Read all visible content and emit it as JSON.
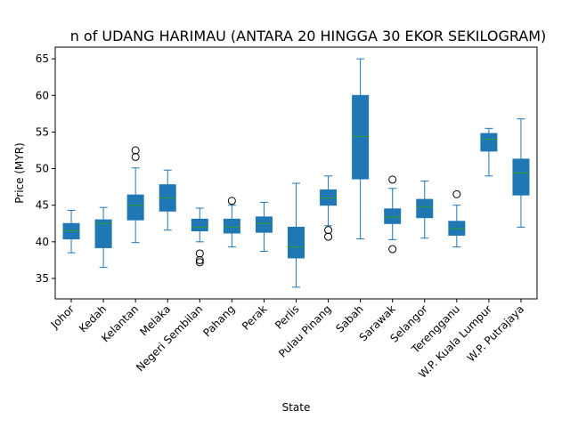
{
  "chart_data": {
    "type": "box",
    "title": "n of UDANG HARIMAU (ANTARA 20 HINGGA 30 EKOR SEKILOGRAM)",
    "xlabel": "State",
    "ylabel": "Price (MYR)",
    "ylim": [
      32.2,
      66.6
    ],
    "yticks": [
      35,
      40,
      45,
      50,
      55,
      60,
      65
    ],
    "grid": false,
    "box_color": "#1f77b4",
    "median_color": "#2ca02c",
    "categories": [
      "Johor",
      "Kedah",
      "Kelantan",
      "Melaka",
      "Negeri Sembilan",
      "Pahang",
      "Perak",
      "Perlis",
      "Pulau Pinang",
      "Sabah",
      "Sarawak",
      "Selangor",
      "Terengganu",
      "W.P. Kuala Lumpur",
      "W.P. Putrajaya"
    ],
    "boxes": [
      {
        "whisker_low": 38.5,
        "q1": 40.4,
        "median": 41.5,
        "q3": 42.5,
        "whisker_high": 44.3,
        "outliers": []
      },
      {
        "whisker_low": 36.5,
        "q1": 39.2,
        "median": 42.5,
        "q3": 43.0,
        "whisker_high": 44.7,
        "outliers": []
      },
      {
        "whisker_low": 39.9,
        "q1": 43.0,
        "median": 45.0,
        "q3": 46.4,
        "whisker_high": 50.1,
        "outliers": [
          51.6,
          52.5
        ]
      },
      {
        "whisker_low": 41.6,
        "q1": 44.2,
        "median": 46.0,
        "q3": 47.8,
        "whisker_high": 49.8,
        "outliers": []
      },
      {
        "whisker_low": 40.0,
        "q1": 41.5,
        "median": 42.0,
        "q3": 43.1,
        "whisker_high": 44.6,
        "outliers": [
          38.4,
          37.5,
          37.2
        ]
      },
      {
        "whisker_low": 39.3,
        "q1": 41.2,
        "median": 42.0,
        "q3": 43.1,
        "whisker_high": 45.0,
        "outliers": [
          45.6
        ]
      },
      {
        "whisker_low": 38.7,
        "q1": 41.3,
        "median": 42.5,
        "q3": 43.4,
        "whisker_high": 45.4,
        "outliers": []
      },
      {
        "whisker_low": 33.8,
        "q1": 37.8,
        "median": 39.3,
        "q3": 42.0,
        "whisker_high": 48.0,
        "outliers": []
      },
      {
        "whisker_low": 42.2,
        "q1": 45.0,
        "median": 46.0,
        "q3": 47.1,
        "whisker_high": 49.0,
        "outliers": [
          41.6,
          40.7
        ]
      },
      {
        "whisker_low": 40.4,
        "q1": 48.6,
        "median": 54.4,
        "q3": 60.0,
        "whisker_high": 65.0,
        "outliers": []
      },
      {
        "whisker_low": 40.3,
        "q1": 42.5,
        "median": 43.4,
        "q3": 44.5,
        "whisker_high": 47.3,
        "outliers": [
          48.5,
          39.0
        ]
      },
      {
        "whisker_low": 40.5,
        "q1": 43.3,
        "median": 44.8,
        "q3": 45.8,
        "whisker_high": 48.3,
        "outliers": []
      },
      {
        "whisker_low": 39.3,
        "q1": 40.9,
        "median": 41.8,
        "q3": 42.8,
        "whisker_high": 45.0,
        "outliers": [
          46.5
        ]
      },
      {
        "whisker_low": 49.0,
        "q1": 52.4,
        "median": 54.0,
        "q3": 54.8,
        "whisker_high": 55.5,
        "outliers": []
      },
      {
        "whisker_low": 42.0,
        "q1": 46.4,
        "median": 49.4,
        "q3": 51.3,
        "whisker_high": 56.8,
        "outliers": []
      }
    ]
  }
}
